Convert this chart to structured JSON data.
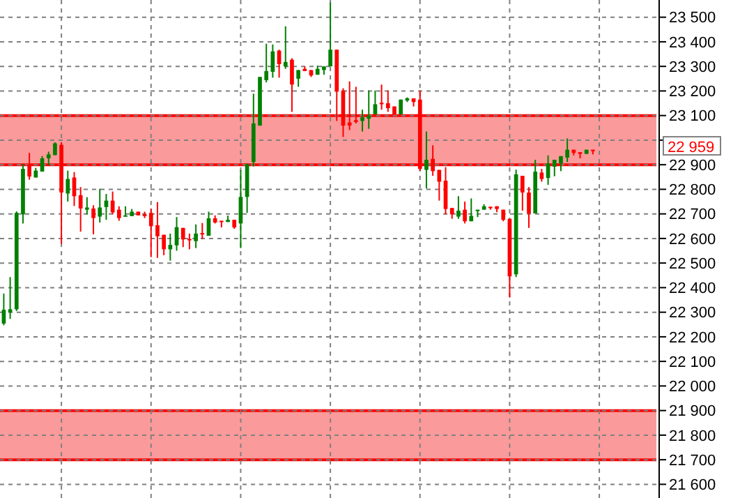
{
  "chart_data": {
    "type": "candlestick",
    "categories": [
      null,
      null,
      null,
      null,
      null,
      null,
      null,
      null,
      null,
      null,
      null,
      null,
      null,
      null,
      null,
      null,
      null,
      null,
      null,
      null,
      null,
      null,
      null,
      null,
      null,
      null,
      null,
      null,
      null,
      null,
      null,
      null,
      null,
      null,
      null,
      null,
      null,
      null,
      null,
      null,
      null,
      null,
      null,
      null,
      null,
      null,
      null,
      null,
      null,
      null,
      null,
      null,
      null,
      null,
      null,
      null,
      null,
      null,
      null,
      null,
      null,
      null,
      null,
      null,
      null,
      null,
      null,
      null,
      null,
      null,
      null,
      null,
      null,
      null,
      null,
      null,
      null,
      null,
      null,
      null,
      null,
      null,
      null,
      null,
      null,
      null,
      null,
      null,
      null,
      null,
      null,
      null,
      null
    ],
    "ohlc": [
      [
        22254,
        22376,
        22247,
        22310
      ],
      [
        22300,
        22443,
        22273,
        22312
      ],
      [
        22312,
        22710,
        22305,
        22704
      ],
      [
        22698,
        22902,
        22661,
        22883
      ],
      [
        22902,
        22948,
        22839,
        22852
      ],
      [
        22848,
        22887,
        22848,
        22876
      ],
      [
        22872,
        22935,
        22872,
        22926
      ],
      [
        22926,
        22953,
        22898,
        22942
      ],
      [
        22939,
        22991,
        22939,
        22987
      ],
      [
        22981,
        22991,
        22578,
        22787
      ],
      [
        22783,
        22876,
        22750,
        22842
      ],
      [
        22848,
        22870,
        22732,
        22772
      ],
      [
        22776,
        22809,
        22628,
        22722
      ],
      [
        22717,
        22768,
        22698,
        22726
      ],
      [
        22722,
        22735,
        22617,
        22683
      ],
      [
        22689,
        22802,
        22665,
        22726
      ],
      [
        22728,
        22781,
        22676,
        22754
      ],
      [
        22754,
        22791,
        22698,
        22706
      ],
      [
        22717,
        22731,
        22672,
        22683
      ],
      [
        22691,
        22731,
        22691,
        22694
      ],
      [
        22691,
        22720,
        22691,
        22709
      ],
      [
        22709,
        22709,
        22694,
        22694
      ],
      [
        22698,
        22709,
        22683,
        22691
      ],
      [
        22704,
        22722,
        22524,
        22650
      ],
      [
        22654,
        22748,
        22521,
        22609
      ],
      [
        22615,
        22615,
        22532,
        22556
      ],
      [
        22556,
        22620,
        22510,
        22574
      ],
      [
        22572,
        22687,
        22550,
        22646
      ],
      [
        22643,
        22643,
        22565,
        22596
      ],
      [
        22598,
        22620,
        22556,
        22594
      ],
      [
        22589,
        22657,
        22561,
        22620
      ],
      [
        22622,
        22663,
        22598,
        22617
      ],
      [
        22611,
        22709,
        22611,
        22682
      ],
      [
        22682,
        22694,
        22661,
        22665
      ],
      [
        22672,
        22672,
        22645,
        22669
      ],
      [
        22667,
        22693,
        22667,
        22676
      ],
      [
        22676,
        22676,
        22639,
        22645
      ],
      [
        22661,
        22878,
        22561,
        22769
      ],
      [
        22769,
        22905,
        22704,
        22902
      ],
      [
        22911,
        23189,
        22893,
        23068
      ],
      [
        23059,
        23257,
        23059,
        23257
      ],
      [
        23244,
        23392,
        23235,
        23281
      ],
      [
        23278,
        23389,
        23254,
        23361
      ],
      [
        23364,
        23368,
        23254,
        23309
      ],
      [
        23300,
        23463,
        23290,
        23318
      ],
      [
        23327,
        23333,
        23115,
        23226
      ],
      [
        23250,
        23285,
        23217,
        23285
      ],
      [
        23290,
        23300,
        23281,
        23281
      ],
      [
        23285,
        23285,
        23257,
        23263
      ],
      [
        23266,
        23303,
        23266,
        23290
      ],
      [
        23285,
        23300,
        23266,
        23300
      ],
      [
        23300,
        23560,
        23300,
        23368
      ],
      [
        23368,
        23368,
        23078,
        23198
      ],
      [
        23202,
        23211,
        23013,
        23059
      ],
      [
        23072,
        23239,
        23041,
        23059
      ],
      [
        23081,
        23217,
        23068,
        23074
      ],
      [
        23078,
        23124,
        23035,
        23093
      ],
      [
        23087,
        23202,
        23046,
        23100
      ],
      [
        23105,
        23202,
        23105,
        23146
      ],
      [
        23152,
        23226,
        23124,
        23146
      ],
      [
        23150,
        23202,
        23115,
        23130
      ],
      [
        23137,
        23137,
        23105,
        23105
      ],
      [
        23105,
        23165,
        23105,
        23165
      ],
      [
        23161,
        23174,
        23155,
        23170
      ],
      [
        23170,
        23170,
        23137,
        23155
      ],
      [
        23165,
        23202,
        22875,
        22883
      ],
      [
        22879,
        23035,
        22803,
        22920
      ],
      [
        22924,
        22979,
        22855,
        22874
      ],
      [
        22879,
        22879,
        22754,
        22831
      ],
      [
        22835,
        22890,
        22698,
        22720
      ],
      [
        22724,
        22724,
        22680,
        22698
      ],
      [
        22689,
        22772,
        22680,
        22713
      ],
      [
        22717,
        22750,
        22661,
        22670
      ],
      [
        22670,
        22763,
        22670,
        22692
      ],
      [
        22713,
        22717,
        22687,
        22717
      ],
      [
        22717,
        22739,
        22717,
        22731
      ],
      [
        22729,
        22729,
        22717,
        22726
      ],
      [
        22731,
        22731,
        22707,
        22720
      ],
      [
        22717,
        22717,
        22670,
        22676
      ],
      [
        22680,
        22680,
        22360,
        22446
      ],
      [
        22454,
        22880,
        22443,
        22861
      ],
      [
        22855,
        22855,
        22713,
        22787
      ],
      [
        22787,
        22809,
        22643,
        22702
      ],
      [
        22702,
        22920,
        22702,
        22872
      ],
      [
        22868,
        22883,
        22831,
        22842
      ],
      [
        22846,
        22938,
        22818,
        22905
      ],
      [
        22892,
        22920,
        22853,
        22920
      ],
      [
        22905,
        22935,
        22874,
        22935
      ],
      [
        22929,
        23007,
        22911,
        22961
      ],
      [
        22961,
        22961,
        22938,
        22948
      ],
      [
        22951,
        22951,
        22926,
        22944
      ],
      [
        22944,
        22961,
        22944,
        22961
      ],
      [
        22961,
        22961,
        22942,
        22957
      ]
    ],
    "colors": [
      "#008000",
      "#008000",
      "#008000",
      "#008000",
      "#ff0000",
      "#008000",
      "#008000",
      "#008000",
      "#008000",
      "#ff0000",
      "#008000",
      "#ff0000",
      "#ff0000",
      "#008000",
      "#ff0000",
      "#008000",
      "#008000",
      "#ff0000",
      "#ff0000",
      "#008000",
      "#008000",
      "#ff0000",
      "#ff0000",
      "#ff0000",
      "#ff0000",
      "#ff0000",
      "#008000",
      "#008000",
      "#ff0000",
      "#ff0000",
      "#008000",
      "#ff0000",
      "#008000",
      "#ff0000",
      "#ff0000",
      "#008000",
      "#ff0000",
      "#008000",
      "#008000",
      "#008000",
      "#008000",
      "#008000",
      "#008000",
      "#ff0000",
      "#008000",
      "#ff0000",
      "#008000",
      "#ff0000",
      "#ff0000",
      "#008000",
      "#008000",
      "#008000",
      "#ff0000",
      "#ff0000",
      "#ff0000",
      "#ff0000",
      "#008000",
      "#008000",
      "#008000",
      "#ff0000",
      "#ff0000",
      "#ff0000",
      "#008000",
      "#008000",
      "#ff0000",
      "#ff0000",
      "#008000",
      "#ff0000",
      "#ff0000",
      "#ff0000",
      "#ff0000",
      "#008000",
      "#ff0000",
      "#008000",
      "#008000",
      "#008000",
      "#ff0000",
      "#ff0000",
      "#ff0000",
      "#ff0000",
      "#008000",
      "#ff0000",
      "#ff0000",
      "#008000",
      "#ff0000",
      "#008000",
      "#008000",
      "#008000",
      "#008000",
      "#ff0000",
      "#ff0000",
      "#008000",
      "#ff0000"
    ],
    "ylim": [
      21550,
      23570
    ],
    "yticks": [
      {
        "value": 21600,
        "label": "21 600"
      },
      {
        "value": 21700,
        "label": "21 700"
      },
      {
        "value": 21800,
        "label": "21 800"
      },
      {
        "value": 21900,
        "label": "21 900"
      },
      {
        "value": 22000,
        "label": "22 000"
      },
      {
        "value": 22100,
        "label": "22 100"
      },
      {
        "value": 22200,
        "label": "22 200"
      },
      {
        "value": 22300,
        "label": "22 300"
      },
      {
        "value": 22400,
        "label": "22 400"
      },
      {
        "value": 22500,
        "label": "22 500"
      },
      {
        "value": 22600,
        "label": "22 600"
      },
      {
        "value": 22700,
        "label": "22 700"
      },
      {
        "value": 22800,
        "label": "22 800"
      },
      {
        "value": 22900,
        "label": "22 900"
      },
      {
        "value": 23000,
        "label": null
      },
      {
        "value": 23100,
        "label": "23 100"
      },
      {
        "value": 23200,
        "label": "23 200"
      },
      {
        "value": 23300,
        "label": "23 300"
      },
      {
        "value": 23400,
        "label": "23 400"
      },
      {
        "value": 23500,
        "label": "23 500"
      }
    ],
    "bands": [
      {
        "axis": "y",
        "from": 22900,
        "to": 23100,
        "color": "#fa9a9a"
      },
      {
        "axis": "y",
        "from": 21700,
        "to": 21900,
        "color": "#fa9a9a"
      }
    ],
    "annotations": [
      "22 959"
    ],
    "grid": true
  }
}
